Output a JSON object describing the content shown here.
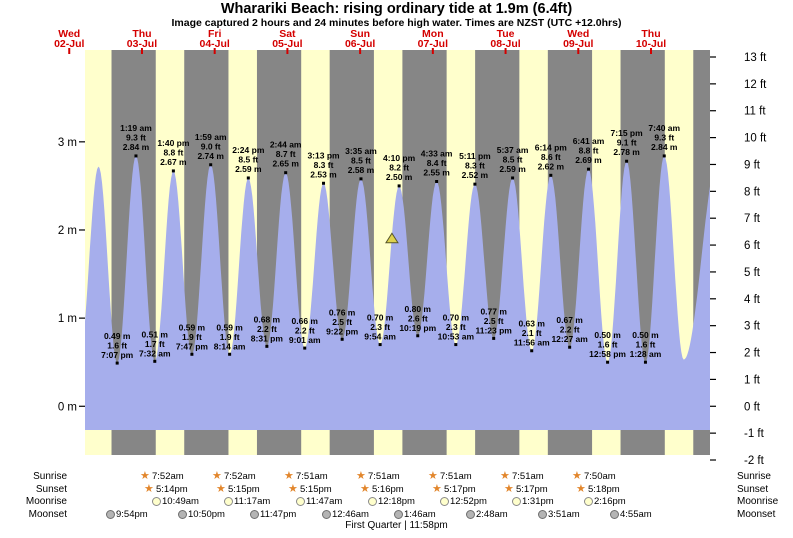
{
  "chart_data": {
    "type": "area",
    "title": "Wharariki Beach: rising  ordinary tide at 1.9m (6.4ft)",
    "subtitle": "Image captured 2 hours and 24 minutes before high water. Times are NZST (UTC +12.0hrs)",
    "x_axis": {
      "days": [
        {
          "dow": "Wed",
          "date": "02-Jul"
        },
        {
          "dow": "Thu",
          "date": "03-Jul"
        },
        {
          "dow": "Fri",
          "date": "04-Jul"
        },
        {
          "dow": "Sat",
          "date": "05-Jul"
        },
        {
          "dow": "Sun",
          "date": "06-Jul"
        },
        {
          "dow": "Mon",
          "date": "07-Jul"
        },
        {
          "dow": "Tue",
          "date": "08-Jul"
        },
        {
          "dow": "Wed",
          "date": "09-Jul"
        },
        {
          "dow": "Thu",
          "date": "10-Jul"
        }
      ]
    },
    "y_axis_left": {
      "unit": "m",
      "labels": [
        "3 m",
        "2 m",
        "1 m",
        "0 m"
      ],
      "values": [
        3,
        2,
        1,
        0
      ]
    },
    "y_axis_right": {
      "unit": "ft",
      "labels": [
        "13 ft",
        "12 ft",
        "11 ft",
        "10 ft",
        "9 ft",
        "8 ft",
        "7 ft",
        "6 ft",
        "5 ft",
        "4 ft",
        "3 ft",
        "2 ft",
        "1 ft",
        "0 ft",
        "-1 ft",
        "-2 ft"
      ],
      "values": [
        13,
        12,
        11,
        10,
        9,
        8,
        7,
        6,
        5,
        4,
        3,
        2,
        1,
        0,
        -1,
        -2
      ]
    },
    "highs": [
      {
        "time": "1:19 am",
        "ft": "9.3 ft",
        "m": "2.84 m",
        "t": 25.32,
        "h": 2.84
      },
      {
        "time": "1:40 pm",
        "ft": "8.8 ft",
        "m": "2.67 m",
        "t": 37.67,
        "h": 2.67
      },
      {
        "time": "1:59 am",
        "ft": "9.0 ft",
        "m": "2.74 m",
        "t": 49.98,
        "h": 2.74
      },
      {
        "time": "2:24 pm",
        "ft": "8.5 ft",
        "m": "2.59 m",
        "t": 62.4,
        "h": 2.59
      },
      {
        "time": "2:44 am",
        "ft": "8.7 ft",
        "m": "2.65 m",
        "t": 74.73,
        "h": 2.65
      },
      {
        "time": "3:13 pm",
        "ft": "8.3 ft",
        "m": "2.53 m",
        "t": 87.22,
        "h": 2.53
      },
      {
        "time": "3:35 am",
        "ft": "8.5 ft",
        "m": "2.58 m",
        "t": 99.58,
        "h": 2.58
      },
      {
        "time": "4:10 pm",
        "ft": "8.2 ft",
        "m": "2.50 m",
        "t": 112.17,
        "h": 2.5
      },
      {
        "time": "4:33 am",
        "ft": "8.4 ft",
        "m": "2.55 m",
        "t": 124.55,
        "h": 2.55
      },
      {
        "time": "5:11 pm",
        "ft": "8.3 ft",
        "m": "2.52 m",
        "t": 137.18,
        "h": 2.52
      },
      {
        "time": "5:37 am",
        "ft": "8.5 ft",
        "m": "2.59 m",
        "t": 149.62,
        "h": 2.59
      },
      {
        "time": "6:14 pm",
        "ft": "8.6 ft",
        "m": "2.62 m",
        "t": 162.23,
        "h": 2.62
      },
      {
        "time": "6:41 am",
        "ft": "8.8 ft",
        "m": "2.69 m",
        "t": 174.68,
        "h": 2.69
      },
      {
        "time": "7:15 pm",
        "ft": "9.1 ft",
        "m": "2.78 m",
        "t": 187.25,
        "h": 2.78
      },
      {
        "time": "7:40 am",
        "ft": "9.3 ft",
        "m": "2.84 m",
        "t": 199.67,
        "h": 2.84
      }
    ],
    "lows": [
      {
        "m": "0.49 m",
        "ft": "1.6 ft",
        "time": "7:07 pm",
        "t": 19.12,
        "h": 0.49
      },
      {
        "m": "0.51 m",
        "ft": "1.7 ft",
        "time": "7:32 am",
        "t": 31.53,
        "h": 0.51
      },
      {
        "m": "0.59 m",
        "ft": "1.9 ft",
        "time": "7:47 pm",
        "t": 43.78,
        "h": 0.59
      },
      {
        "m": "0.59 m",
        "ft": "1.9 ft",
        "time": "8:14 am",
        "t": 56.23,
        "h": 0.59
      },
      {
        "m": "0.68 m",
        "ft": "2.2 ft",
        "time": "8:31 pm",
        "t": 68.52,
        "h": 0.68
      },
      {
        "m": "0.66 m",
        "ft": "2.2 ft",
        "time": "9:01 am",
        "t": 81.02,
        "h": 0.66
      },
      {
        "m": "0.76 m",
        "ft": "2.5 ft",
        "time": "9:22 pm",
        "t": 93.37,
        "h": 0.76
      },
      {
        "m": "0.70 m",
        "ft": "2.3 ft",
        "time": "9:54 am",
        "t": 105.9,
        "h": 0.7
      },
      {
        "m": "0.80 m",
        "ft": "2.6 ft",
        "time": "10:19 pm",
        "t": 118.32,
        "h": 0.8
      },
      {
        "m": "0.70 m",
        "ft": "2.3 ft",
        "time": "10:53 am",
        "t": 130.88,
        "h": 0.7
      },
      {
        "m": "0.77 m",
        "ft": "2.5 ft",
        "time": "11:23 pm",
        "t": 143.38,
        "h": 0.77
      },
      {
        "m": "0.63 m",
        "ft": "2.1 ft",
        "time": "11:56 am",
        "t": 155.93,
        "h": 0.63
      },
      {
        "m": "0.67 m",
        "ft": "2.2 ft",
        "time": "12:27 am",
        "t": 168.45,
        "h": 0.67
      },
      {
        "m": "0.50 m",
        "ft": "1.6 ft",
        "time": "12:58 pm",
        "t": 180.97,
        "h": 0.5
      },
      {
        "m": "0.50 m",
        "ft": "1.6 ft",
        "time": "1:28 am",
        "t": 193.47,
        "h": 0.5
      }
    ],
    "unlabeled_points": [
      {
        "t": 6.7,
        "h": 0.55
      },
      {
        "t": 12.97,
        "h": 2.72
      },
      {
        "t": 206.1,
        "h": 0.53
      },
      {
        "t": 217.9,
        "h": 2.88
      }
    ],
    "current_tide_marker": {
      "t": 109.8,
      "h": 1.9
    },
    "colors": {
      "night_bg": "#868686",
      "daylight_band": "#ffffcc",
      "tide_fill": "#a6aeec",
      "day_label": "#d40000",
      "annotation": "#000000",
      "star": "#e2862c",
      "moonrise_fill": "#ffffcc",
      "moonrise_border": "#8a8a8a",
      "moonset_fill": "#b4b4b4",
      "moonset_border": "#6e6e6e",
      "marker_fill": "#ded24e",
      "marker_stroke": "#55552a"
    }
  },
  "astro": {
    "rows": [
      {
        "name": "sunrise",
        "label": "Sunrise",
        "icon": "sun",
        "entries": [
          "7:52am",
          "7:52am",
          "7:51am",
          "7:51am",
          "7:51am",
          "7:51am",
          "7:50am"
        ]
      },
      {
        "name": "sunset",
        "label": "Sunset",
        "icon": "sun",
        "entries": [
          "5:14pm",
          "5:15pm",
          "5:15pm",
          "5:16pm",
          "5:17pm",
          "5:17pm",
          "5:18pm"
        ]
      },
      {
        "name": "moonrise",
        "label": "Moonrise",
        "icon": "moon-up",
        "entries": [
          "10:49am",
          "11:17am",
          "11:47am",
          "12:18pm",
          "12:52pm",
          "1:31pm",
          "2:16pm"
        ]
      },
      {
        "name": "moonset",
        "label": "Moonset",
        "icon": "moon-down",
        "entries": [
          "9:54pm",
          "10:50pm",
          "11:47pm",
          "12:46am",
          "1:46am",
          "2:48am",
          "3:51am",
          "4:55am"
        ]
      }
    ],
    "footer": "First Quarter | 11:58pm"
  }
}
